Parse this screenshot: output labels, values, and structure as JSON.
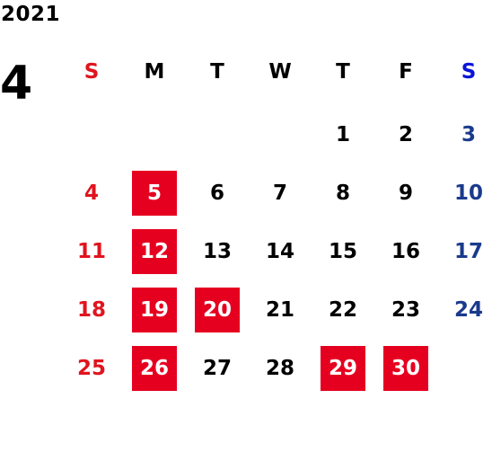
{
  "calendar": {
    "year": "2021",
    "month": "4",
    "weekdays": [
      "S",
      "M",
      "T",
      "W",
      "T",
      "F",
      "S"
    ],
    "weeks": [
      [
        "",
        "",
        "",
        "",
        "1",
        "2",
        "3"
      ],
      [
        "4",
        "5",
        "6",
        "7",
        "8",
        "9",
        "10"
      ],
      [
        "11",
        "12",
        "13",
        "14",
        "15",
        "16",
        "17"
      ],
      [
        "18",
        "19",
        "20",
        "21",
        "22",
        "23",
        "24"
      ],
      [
        "25",
        "26",
        "27",
        "28",
        "29",
        "30",
        ""
      ]
    ],
    "highlighted_days": [
      "5",
      "12",
      "19",
      "20",
      "26",
      "29",
      "30"
    ]
  },
  "colors": {
    "sunday": "#e0141e",
    "saturday_header": "#0a14d8",
    "saturday_date": "#1a3a8c",
    "weekday": "#000000",
    "highlight_bg": "#e60020",
    "highlight_text": "#ffffff"
  }
}
